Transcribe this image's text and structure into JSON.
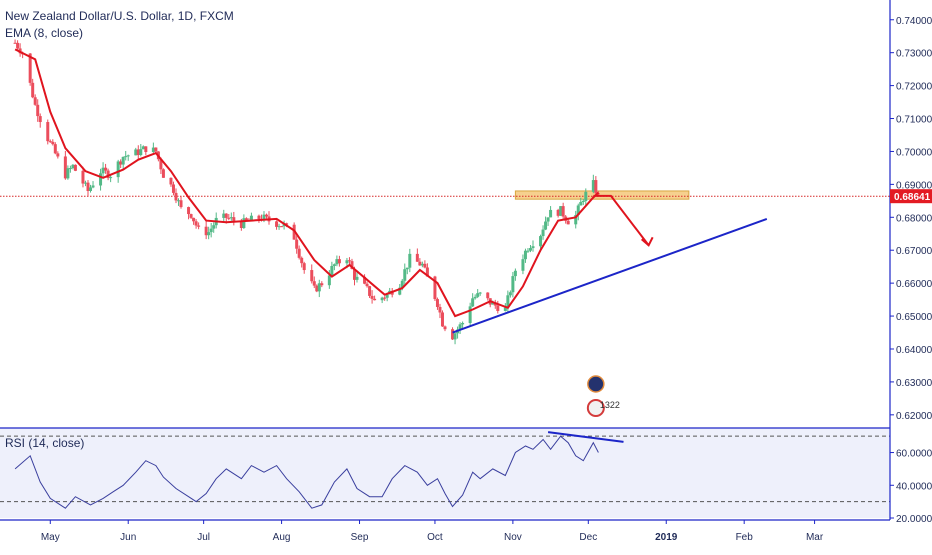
{
  "header": {
    "symbol_title": "New Zealand Dollar/U.S. Dollar, 1D, FXCM",
    "indicator_label": "EMA (8, close)",
    "rsi_label": "RSI (14, close)"
  },
  "price_scale": {
    "ticks": [
      "0.74000",
      "0.73000",
      "0.72000",
      "0.71000",
      "0.70000",
      "0.69000",
      "0.68000",
      "0.67000",
      "0.66000",
      "0.65000",
      "0.64000",
      "0.63000",
      "0.62000"
    ],
    "current_price": "0.68641"
  },
  "rsi_scale": {
    "ticks": [
      "60.0000",
      "40.0000",
      "20.0000"
    ]
  },
  "time_axis": {
    "labels": [
      "May",
      "Jun",
      "Jul",
      "Aug",
      "Sep",
      "Oct",
      "Nov",
      "Dec",
      "2019",
      "Feb",
      "Mar"
    ]
  },
  "event_badge": {
    "count": "1322"
  },
  "colors": {
    "up": "#53b987",
    "down": "#eb4d5c",
    "ema": "#e0141e",
    "trendline": "#1c25c8",
    "resistance": "#f5c87a",
    "rsi": "#3a3f9e",
    "rsi_fill": "#eef0fb",
    "axis_text": "#1f2a57"
  },
  "chart_data": {
    "type": "candlestick",
    "title": "New Zealand Dollar/U.S. Dollar, 1D, FXCM",
    "price_ylim": [
      0.616,
      0.746
    ],
    "x_months": [
      "May",
      "Jun",
      "Jul",
      "Aug",
      "Sep",
      "Oct",
      "Nov",
      "Dec",
      "2019",
      "Feb",
      "Mar"
    ],
    "close_path": [
      [
        "2018-04-17",
        0.733
      ],
      [
        "2018-04-20",
        0.73
      ],
      [
        "2018-04-25",
        0.714
      ],
      [
        "2018-04-30",
        0.704
      ],
      [
        "2018-05-07",
        0.693
      ],
      [
        "2018-05-10",
        0.6955
      ],
      [
        "2018-05-16",
        0.688
      ],
      [
        "2018-05-21",
        0.694
      ],
      [
        "2018-05-25",
        0.693
      ],
      [
        "2018-05-30",
        0.6985
      ],
      [
        "2018-06-04",
        0.6995
      ],
      [
        "2018-06-08",
        0.701
      ],
      [
        "2018-06-12",
        0.7
      ],
      [
        "2018-06-15",
        0.693
      ],
      [
        "2018-06-19",
        0.6885
      ],
      [
        "2018-06-22",
        0.6825
      ],
      [
        "2018-06-26",
        0.681
      ],
      [
        "2018-06-29",
        0.676
      ],
      [
        "2018-07-03",
        0.6755
      ],
      [
        "2018-07-06",
        0.679
      ],
      [
        "2018-07-10",
        0.68
      ],
      [
        "2018-07-16",
        0.678
      ],
      [
        "2018-07-19",
        0.679
      ],
      [
        "2018-07-24",
        0.68
      ],
      [
        "2018-07-27",
        0.679
      ],
      [
        "2018-08-02",
        0.6775
      ],
      [
        "2018-08-06",
        0.674
      ],
      [
        "2018-08-10",
        0.664
      ],
      [
        "2018-08-14",
        0.658
      ],
      [
        "2018-08-17",
        0.66
      ],
      [
        "2018-08-22",
        0.6655
      ],
      [
        "2018-08-27",
        0.668
      ],
      [
        "2018-08-30",
        0.662
      ],
      [
        "2018-09-04",
        0.658
      ],
      [
        "2018-09-07",
        0.6545
      ],
      [
        "2018-09-12",
        0.6565
      ],
      [
        "2018-09-17",
        0.66
      ],
      [
        "2018-09-21",
        0.6675
      ],
      [
        "2018-09-26",
        0.6655
      ],
      [
        "2018-09-28",
        0.6615
      ],
      [
        "2018-10-02",
        0.654
      ],
      [
        "2018-10-04",
        0.648
      ],
      [
        "2018-10-08",
        0.644
      ],
      [
        "2018-10-12",
        0.648
      ],
      [
        "2018-10-16",
        0.6555
      ],
      [
        "2018-10-19",
        0.6565
      ],
      [
        "2018-10-24",
        0.6535
      ],
      [
        "2018-10-29",
        0.652
      ],
      [
        "2018-11-02",
        0.664
      ],
      [
        "2018-11-07",
        0.671
      ],
      [
        "2018-11-12",
        0.675
      ],
      [
        "2018-11-15",
        0.681
      ],
      [
        "2018-11-20",
        0.682
      ],
      [
        "2018-11-23",
        0.679
      ],
      [
        "2018-11-26",
        0.6805
      ],
      [
        "2018-11-29",
        0.686
      ],
      [
        "2018-12-03",
        0.69
      ],
      [
        "2018-12-05",
        0.6864
      ]
    ],
    "ema": {
      "name": "EMA (8, close)",
      "points": [
        [
          "2018-04-17",
          0.731
        ],
        [
          "2018-04-25",
          0.728
        ],
        [
          "2018-05-01",
          0.712
        ],
        [
          "2018-05-07",
          0.701
        ],
        [
          "2018-05-15",
          0.694
        ],
        [
          "2018-05-22",
          0.692
        ],
        [
          "2018-05-30",
          0.6945
        ],
        [
          "2018-06-05",
          0.6975
        ],
        [
          "2018-06-12",
          0.6995
        ],
        [
          "2018-06-18",
          0.694
        ],
        [
          "2018-06-25",
          0.686
        ],
        [
          "2018-07-02",
          0.679
        ],
        [
          "2018-07-10",
          0.6785
        ],
        [
          "2018-07-20",
          0.679
        ],
        [
          "2018-07-30",
          0.6795
        ],
        [
          "2018-08-06",
          0.676
        ],
        [
          "2018-08-14",
          0.667
        ],
        [
          "2018-08-21",
          0.662
        ],
        [
          "2018-08-28",
          0.6655
        ],
        [
          "2018-09-04",
          0.661
        ],
        [
          "2018-09-11",
          0.6565
        ],
        [
          "2018-09-18",
          0.6585
        ],
        [
          "2018-09-25",
          0.664
        ],
        [
          "2018-10-02",
          0.66
        ],
        [
          "2018-10-09",
          0.65
        ],
        [
          "2018-10-16",
          0.652
        ],
        [
          "2018-10-23",
          0.6545
        ],
        [
          "2018-10-30",
          0.6525
        ],
        [
          "2018-11-05",
          0.659
        ],
        [
          "2018-11-12",
          0.67
        ],
        [
          "2018-11-19",
          0.679
        ],
        [
          "2018-11-26",
          0.68
        ],
        [
          "2018-12-03",
          0.686
        ],
        [
          "2018-12-05",
          0.6875
        ]
      ]
    },
    "annotations": {
      "resistance_zone": {
        "from": "2018-11-02",
        "to": "2019-01-10",
        "y_low": 0.6855,
        "y_high": 0.688
      },
      "current_price_line": 0.68641,
      "trendline": {
        "from": [
          "2018-10-08",
          0.645
        ],
        "to": [
          "2019-02-10",
          0.6795
        ]
      },
      "forecast_arrow": {
        "from": [
          "2018-12-10",
          0.6865
        ],
        "to": [
          "2018-12-25",
          0.6715
        ]
      }
    },
    "rsi": {
      "name": "RSI (14, close)",
      "ylim": [
        20,
        75
      ],
      "levels": [
        70,
        30
      ],
      "points": [
        [
          "2018-04-17",
          50
        ],
        [
          "2018-04-23",
          58
        ],
        [
          "2018-04-27",
          42
        ],
        [
          "2018-05-01",
          32
        ],
        [
          "2018-05-07",
          26
        ],
        [
          "2018-05-11",
          33
        ],
        [
          "2018-05-17",
          28
        ],
        [
          "2018-05-22",
          32
        ],
        [
          "2018-05-26",
          36
        ],
        [
          "2018-05-30",
          40
        ],
        [
          "2018-06-04",
          48
        ],
        [
          "2018-06-08",
          55
        ],
        [
          "2018-06-12",
          52
        ],
        [
          "2018-06-15",
          45
        ],
        [
          "2018-06-20",
          38
        ],
        [
          "2018-06-25",
          33
        ],
        [
          "2018-06-28",
          30
        ],
        [
          "2018-07-02",
          35
        ],
        [
          "2018-07-06",
          44
        ],
        [
          "2018-07-10",
          50
        ],
        [
          "2018-07-16",
          44
        ],
        [
          "2018-07-20",
          52
        ],
        [
          "2018-07-25",
          48
        ],
        [
          "2018-07-30",
          52
        ],
        [
          "2018-08-03",
          44
        ],
        [
          "2018-08-08",
          36
        ],
        [
          "2018-08-13",
          26
        ],
        [
          "2018-08-17",
          28
        ],
        [
          "2018-08-22",
          42
        ],
        [
          "2018-08-27",
          50
        ],
        [
          "2018-08-31",
          38
        ],
        [
          "2018-09-05",
          33
        ],
        [
          "2018-09-10",
          33
        ],
        [
          "2018-09-14",
          44
        ],
        [
          "2018-09-19",
          52
        ],
        [
          "2018-09-24",
          48
        ],
        [
          "2018-09-28",
          40
        ],
        [
          "2018-10-02",
          44
        ],
        [
          "2018-10-05",
          35
        ],
        [
          "2018-10-08",
          27
        ],
        [
          "2018-10-12",
          34
        ],
        [
          "2018-10-16",
          48
        ],
        [
          "2018-10-19",
          44
        ],
        [
          "2018-10-24",
          50
        ],
        [
          "2018-10-29",
          46
        ],
        [
          "2018-11-02",
          60
        ],
        [
          "2018-11-06",
          64
        ],
        [
          "2018-11-09",
          62
        ],
        [
          "2018-11-13",
          68
        ],
        [
          "2018-11-16",
          62
        ],
        [
          "2018-11-20",
          70
        ],
        [
          "2018-11-23",
          66
        ],
        [
          "2018-11-26",
          58
        ],
        [
          "2018-11-29",
          55
        ],
        [
          "2018-12-03",
          66
        ],
        [
          "2018-12-05",
          60
        ]
      ],
      "divergence_line": {
        "from": [
          "2018-11-15",
          72.5
        ],
        "to": [
          "2018-12-15",
          66.5
        ]
      }
    }
  }
}
